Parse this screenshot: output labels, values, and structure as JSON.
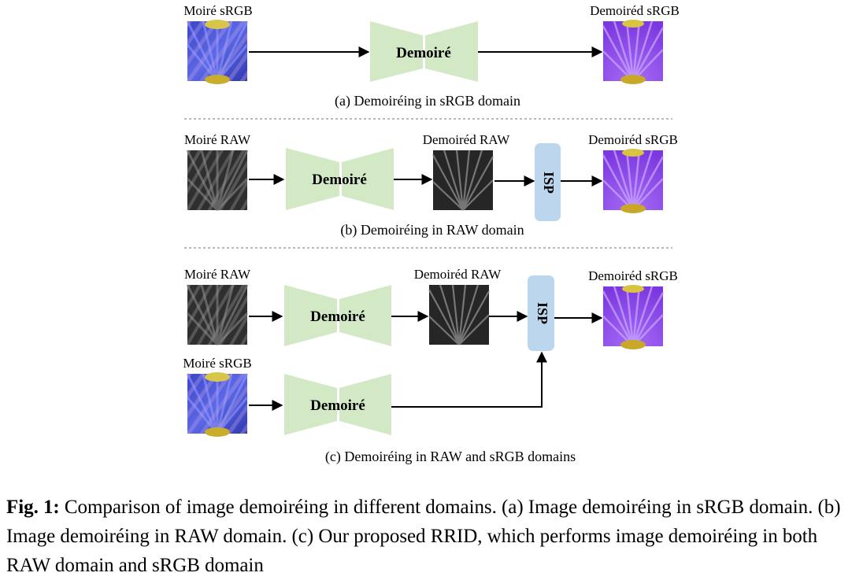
{
  "labels": {
    "moire_srgb": "Moiré sRGB",
    "demoired_srgb": "Demoiréd sRGB",
    "moire_raw": "Moiré RAW",
    "demoired_raw": "Demoiréd RAW",
    "demoire": "Demoiré",
    "isp": "ISP"
  },
  "panels": {
    "a_caption": "(a) Demoiréing in sRGB domain",
    "b_caption": "(b) Demoiréing in RAW domain",
    "c_caption": "(c) Demoiréing in RAW and sRGB domains"
  },
  "caption": {
    "label": "Fig. 1:",
    "text": " Comparison of image demoiréing in different domains. (a) Image demoiréing in sRGB domain. (b) Image demoiréing in RAW domain. (c) Our proposed RRID, which performs image demoiréing in both RAW domain and sRGB domain"
  },
  "colors": {
    "network_fill": "#d3e9c6",
    "isp_fill": "#bcd6ee",
    "moire_srgb_base": "#4b55d6",
    "demoired_srgb_base": "#8a46ea",
    "raw_base": "#3a3a3a"
  }
}
